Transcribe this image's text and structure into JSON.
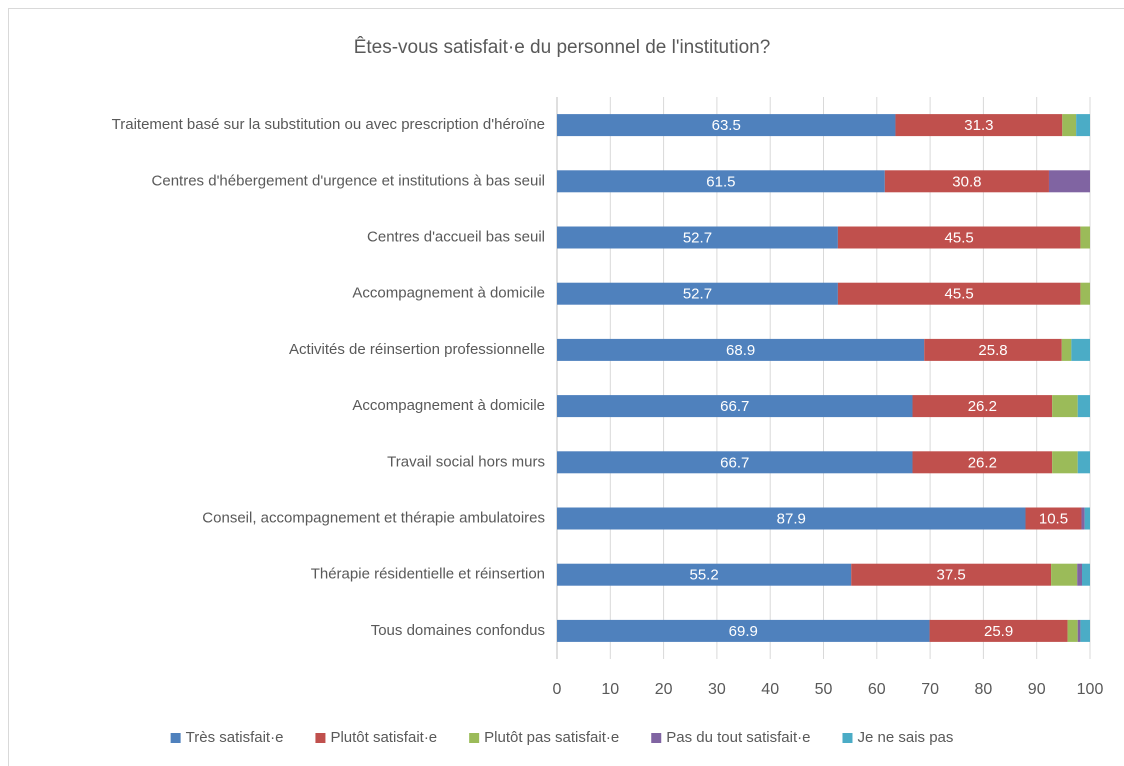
{
  "chart_data": {
    "type": "stacked_barh",
    "title": "Êtes-vous satisfait·e du personnel de l'institution?",
    "categories": [
      "Traitement basé sur la substitution ou avec prescription d'héroïne",
      "Centres d'hébergement d'urgence et institutions à bas seuil",
      "Centres d'accueil bas seuil",
      "Accompagnement à domicile",
      "Activités de réinsertion professionnelle",
      "Accompagnement à domicile",
      "Travail social hors murs",
      "Conseil, accompagnement et thérapie ambulatoires",
      "Thérapie résidentielle et réinsertion",
      "Tous domaines confondus"
    ],
    "series": [
      {
        "name": "Très satisfait·e",
        "color": "#4f81bd",
        "show_labels": true,
        "values": [
          63.5,
          61.5,
          52.7,
          52.7,
          68.9,
          66.7,
          66.7,
          87.9,
          55.2,
          69.9
        ]
      },
      {
        "name": "Plutôt satisfait·e",
        "color": "#c0504d",
        "show_labels": true,
        "values": [
          31.3,
          30.8,
          45.5,
          45.5,
          25.8,
          26.2,
          26.2,
          10.5,
          37.5,
          25.9
        ]
      },
      {
        "name": "Plutôt pas satisfait·e",
        "color": "#9bbb59",
        "show_labels": false,
        "values": [
          2.6,
          0,
          1.8,
          1.8,
          1.8,
          4.8,
          4.8,
          0,
          4.9,
          1.9
        ]
      },
      {
        "name": "Pas du tout satisfait·e",
        "color": "#8064a2",
        "show_labels": false,
        "values": [
          0,
          7.7,
          0,
          0,
          0,
          0,
          0,
          0.6,
          0.9,
          0.5
        ]
      },
      {
        "name": "Je ne sais pas",
        "color": "#4bacc6",
        "show_labels": false,
        "values": [
          2.6,
          0,
          0,
          0,
          3.5,
          2.3,
          2.3,
          1.0,
          1.5,
          1.8
        ]
      }
    ],
    "xlim": [
      0,
      100
    ],
    "xticks": [
      0,
      10,
      20,
      30,
      40,
      50,
      60,
      70,
      80,
      90,
      100
    ],
    "grid": true,
    "legend": "bottom"
  }
}
